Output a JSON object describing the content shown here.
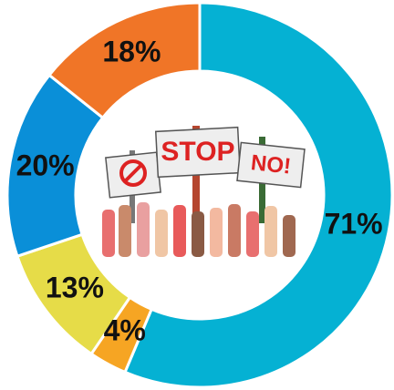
{
  "chart_data": {
    "type": "donut",
    "categories": [
      null,
      null,
      null,
      null,
      null
    ],
    "values": [
      71,
      4,
      13,
      20,
      18
    ],
    "value_labels": [
      "71%",
      "4%",
      "13%",
      "20%",
      "18%"
    ],
    "colors": [
      "#05b1d3",
      "#f6a523",
      "#e6dc48",
      "#0a8fd8",
      "#f07527"
    ]
  },
  "illustration": {
    "signs": [
      "STOP",
      "NO!"
    ]
  }
}
